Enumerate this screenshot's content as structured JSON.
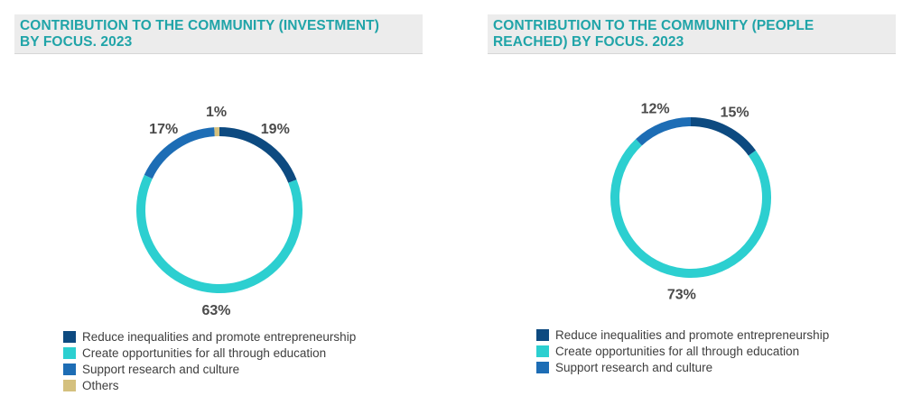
{
  "chart_data": [
    {
      "type": "donut",
      "title": "CONTRIBUTION TO THE COMMUNITY (INVESTMENT)\nBY FOCUS. 2023",
      "categories": [
        "Reduce inequalities and promote entrepreneurship",
        "Create opportunities for all through education",
        "Support research and culture",
        "Others"
      ],
      "values": [
        19,
        63,
        17,
        1
      ],
      "value_labels": [
        "19%",
        "63%",
        "17%",
        "1%"
      ],
      "colors": [
        "#0d4a80",
        "#2ccfd0",
        "#1d6db5",
        "#d4c07e"
      ],
      "legend_position": "bottom-left"
    },
    {
      "type": "donut",
      "title": "CONTRIBUTION TO THE COMMUNITY (PEOPLE\nREACHED) BY FOCUS. 2023",
      "categories": [
        "Reduce inequalities and promote entrepreneurship",
        "Create opportunities for all through education",
        "Support research and culture"
      ],
      "values": [
        15,
        73,
        12
      ],
      "value_labels": [
        "15%",
        "73%",
        "12%"
      ],
      "colors": [
        "#0d4a80",
        "#2ccfd0",
        "#1d6db5"
      ],
      "legend_position": "bottom-left"
    }
  ]
}
